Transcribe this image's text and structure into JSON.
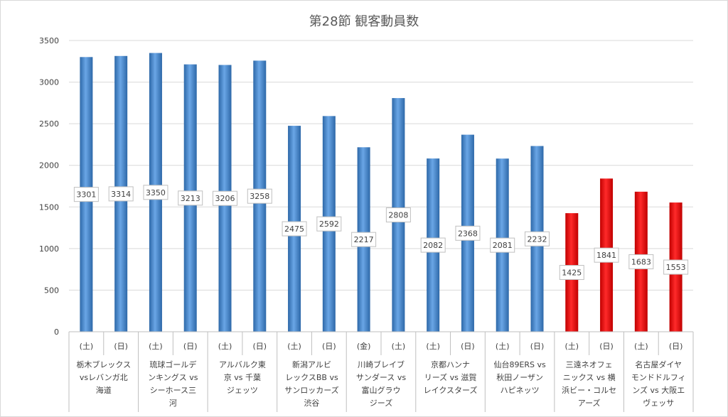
{
  "chart_data": {
    "type": "bar",
    "title": "第28節 観客動員数",
    "ylim": [
      0,
      3500
    ],
    "yticks": [
      0,
      500,
      1000,
      1500,
      2000,
      2500,
      3000,
      3500
    ],
    "grid": true,
    "data_labels": true,
    "colors": {
      "default": "#4f8fd2",
      "highlight": "#ff0000"
    },
    "bars": [
      {
        "day": "(土)",
        "value": 3301,
        "highlight": false
      },
      {
        "day": "(日)",
        "value": 3314,
        "highlight": false
      },
      {
        "day": "(土)",
        "value": 3350,
        "highlight": false
      },
      {
        "day": "(日)",
        "value": 3213,
        "highlight": false
      },
      {
        "day": "(土)",
        "value": 3206,
        "highlight": false
      },
      {
        "day": "(日)",
        "value": 3258,
        "highlight": false
      },
      {
        "day": "(土)",
        "value": 2475,
        "highlight": false
      },
      {
        "day": "(日)",
        "value": 2592,
        "highlight": false
      },
      {
        "day": "(金)",
        "value": 2217,
        "highlight": false
      },
      {
        "day": "(土)",
        "value": 2808,
        "highlight": false
      },
      {
        "day": "(土)",
        "value": 2082,
        "highlight": false
      },
      {
        "day": "(日)",
        "value": 2368,
        "highlight": false
      },
      {
        "day": "(土)",
        "value": 2081,
        "highlight": false
      },
      {
        "day": "(日)",
        "value": 2232,
        "highlight": false
      },
      {
        "day": "(土)",
        "value": 1425,
        "highlight": true
      },
      {
        "day": "(日)",
        "value": 1841,
        "highlight": true
      },
      {
        "day": "(土)",
        "value": 1683,
        "highlight": true
      },
      {
        "day": "(日)",
        "value": 1553,
        "highlight": true
      }
    ],
    "groups": [
      {
        "label_lines": [
          "栃木ブレックス",
          "vsレバンガ北",
          "海道"
        ]
      },
      {
        "label_lines": [
          "琉球ゴールデ",
          "ンキングス vs",
          "シーホース三",
          "河"
        ]
      },
      {
        "label_lines": [
          "アルバルク東",
          "京 vs 千葉",
          "ジェッツ"
        ]
      },
      {
        "label_lines": [
          "新潟アルビ",
          "レックスBB vs",
          "サンロッカーズ",
          "渋谷"
        ]
      },
      {
        "label_lines": [
          "川崎ブレイブ",
          "サンダース vs",
          "富山グラウ",
          "ジーズ"
        ]
      },
      {
        "label_lines": [
          "京都ハンナ",
          "リーズ vs 滋賀",
          "レイクスターズ"
        ]
      },
      {
        "label_lines": [
          "仙台89ERS vs",
          "秋田ノーザン",
          "ハピネッツ"
        ]
      },
      {
        "label_lines": [
          "三遠ネオフェ",
          "ニックス vs 横",
          "浜ビー・コルセ",
          "アーズ"
        ]
      },
      {
        "label_lines": [
          "名古屋ダイヤ",
          "モンドドルフィ",
          "ンズ vs 大阪エ",
          "ヴェッサ"
        ]
      }
    ]
  }
}
